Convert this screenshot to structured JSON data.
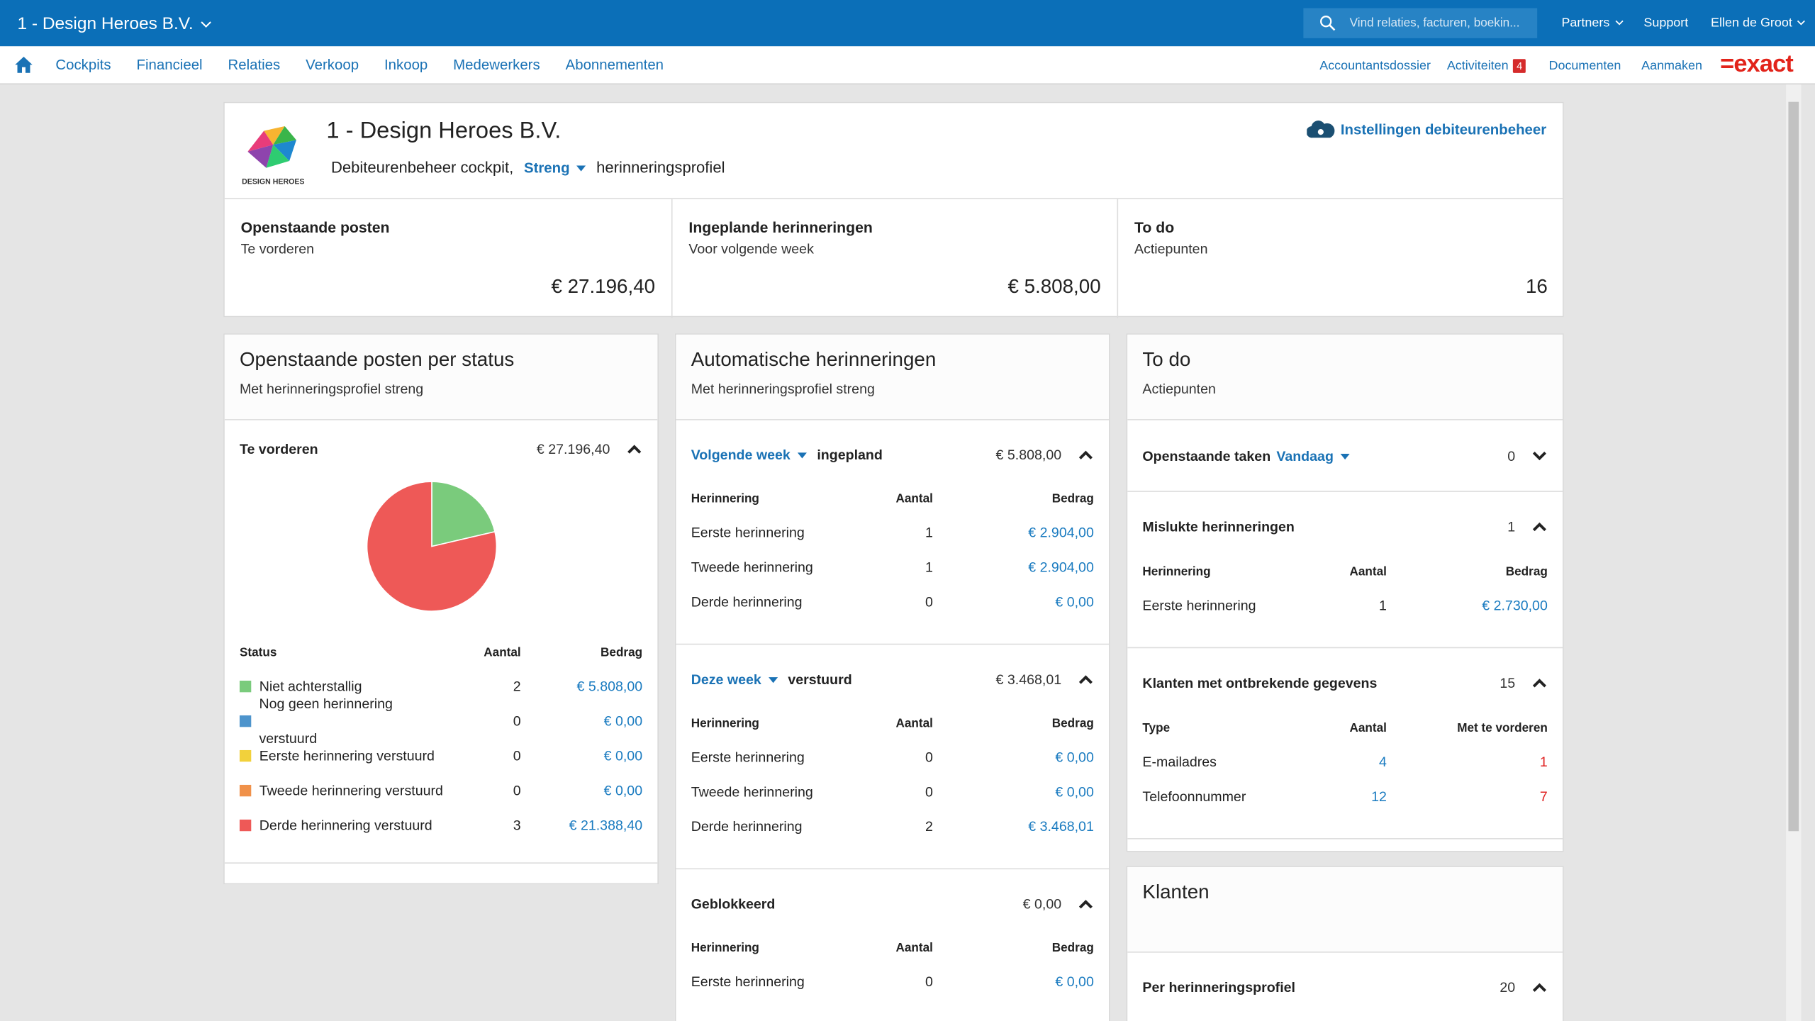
{
  "topbar": {
    "company": "1 - Design Heroes B.V.",
    "search_placeholder": "Vind relaties, facturen, boekin...",
    "links": [
      "Partners",
      "Support",
      "Ellen de Groot"
    ]
  },
  "nav": {
    "items": [
      "Cockpits",
      "Financieel",
      "Relaties",
      "Verkoop",
      "Inkoop",
      "Medewerkers",
      "Abonnementen"
    ],
    "right": [
      "Accountantsdossier",
      "Activiteiten",
      "Documenten",
      "Aanmaken"
    ],
    "badge": "4",
    "logo": "=exact"
  },
  "company": {
    "logo_text": "DESIGN HEROES",
    "title": "1 - Design Heroes B.V.",
    "subtitle": "Debiteurenbeheer cockpit,",
    "profile": "Streng",
    "profile_suffix": "herinneringsprofiel",
    "settings": "Instellingen debiteurenbeheer"
  },
  "kpis": [
    {
      "title": "Openstaande posten",
      "subtitle": "Te vorderen",
      "value": "€ 27.196,40"
    },
    {
      "title": "Ingeplande herinneringen",
      "subtitle": "Voor volgende week",
      "value": "€ 5.808,00"
    },
    {
      "title": "To do",
      "subtitle": "Actiepunten",
      "value": "16"
    }
  ],
  "status_panel": {
    "title": "Openstaande posten per status",
    "subtitle": "Met herinneringsprofiel streng",
    "section": "Te vorderen",
    "total": "€ 27.196,40",
    "headers": [
      "Status",
      "Aantal",
      "Bedrag"
    ],
    "counts": [
      "2",
      "0",
      "0",
      "0",
      "3"
    ]
  },
  "chart_data": {
    "type": "pie",
    "categories": [
      "Niet achterstallig",
      "Nog geen herinnering verstuurd",
      "Eerste herinnering verstuurd",
      "Tweede herinnering verstuurd",
      "Derde herinnering verstuurd"
    ],
    "values": [
      5808,
      0,
      0,
      0,
      21388.4
    ],
    "value_labels": [
      "€ 5.808,00",
      "€ 0,00",
      "€ 0,00",
      "€ 0,00",
      "€ 21.388,40"
    ],
    "colors": [
      "#7acb7c",
      "#4d94cc",
      "#f2d13b",
      "#f0914a",
      "#ee5957"
    ]
  },
  "reminders_panel": {
    "title": "Automatische herinneringen",
    "subtitle": "Met herinneringsprofiel streng",
    "sections": [
      {
        "period": "Volgende week",
        "label": "ingepland",
        "total": "€ 5.808,00",
        "headers": [
          "Herinnering",
          "Aantal",
          "Bedrag"
        ],
        "rows": [
          [
            "Eerste herinnering",
            "1",
            "€ 2.904,00"
          ],
          [
            "Tweede herinnering",
            "1",
            "€ 2.904,00"
          ],
          [
            "Derde herinnering",
            "0",
            "€ 0,00"
          ]
        ]
      },
      {
        "period": "Deze week",
        "label": "verstuurd",
        "total": "€ 3.468,01",
        "headers": [
          "Herinnering",
          "Aantal",
          "Bedrag"
        ],
        "rows": [
          [
            "Eerste herinnering",
            "0",
            "€ 0,00"
          ],
          [
            "Tweede herinnering",
            "0",
            "€ 0,00"
          ],
          [
            "Derde herinnering",
            "2",
            "€ 3.468,01"
          ]
        ]
      },
      {
        "label": "Geblokkeerd",
        "total": "€ 0,00",
        "headers": [
          "Herinnering",
          "Aantal",
          "Bedrag"
        ],
        "rows": [
          [
            "Eerste herinnering",
            "0",
            "€ 0,00"
          ]
        ]
      }
    ]
  },
  "todo_panel": {
    "title": "To do",
    "subtitle": "Actiepunten",
    "sections": [
      {
        "label": "Openstaande taken",
        "period": "Vandaag",
        "total": "0",
        "collapsed": true
      },
      {
        "label": "Mislukte herinneringen",
        "total": "1",
        "headers": [
          "Herinnering",
          "Aantal",
          "Bedrag"
        ],
        "rows": [
          [
            "Eerste herinnering",
            "1",
            "€ 2.730,00"
          ]
        ]
      },
      {
        "label": "Klanten met ontbrekende gegevens",
        "total": "15",
        "headers": [
          "Type",
          "Aantal",
          "Met te vorderen"
        ],
        "rows": [
          [
            "E-mailadres",
            "4",
            "1"
          ],
          [
            "Telefoonnummer",
            "12",
            "7"
          ]
        ]
      }
    ]
  },
  "klanten_panel": {
    "title": "Klanten",
    "sections": [
      {
        "label": "Per herinneringsprofiel",
        "total": "20"
      }
    ]
  }
}
